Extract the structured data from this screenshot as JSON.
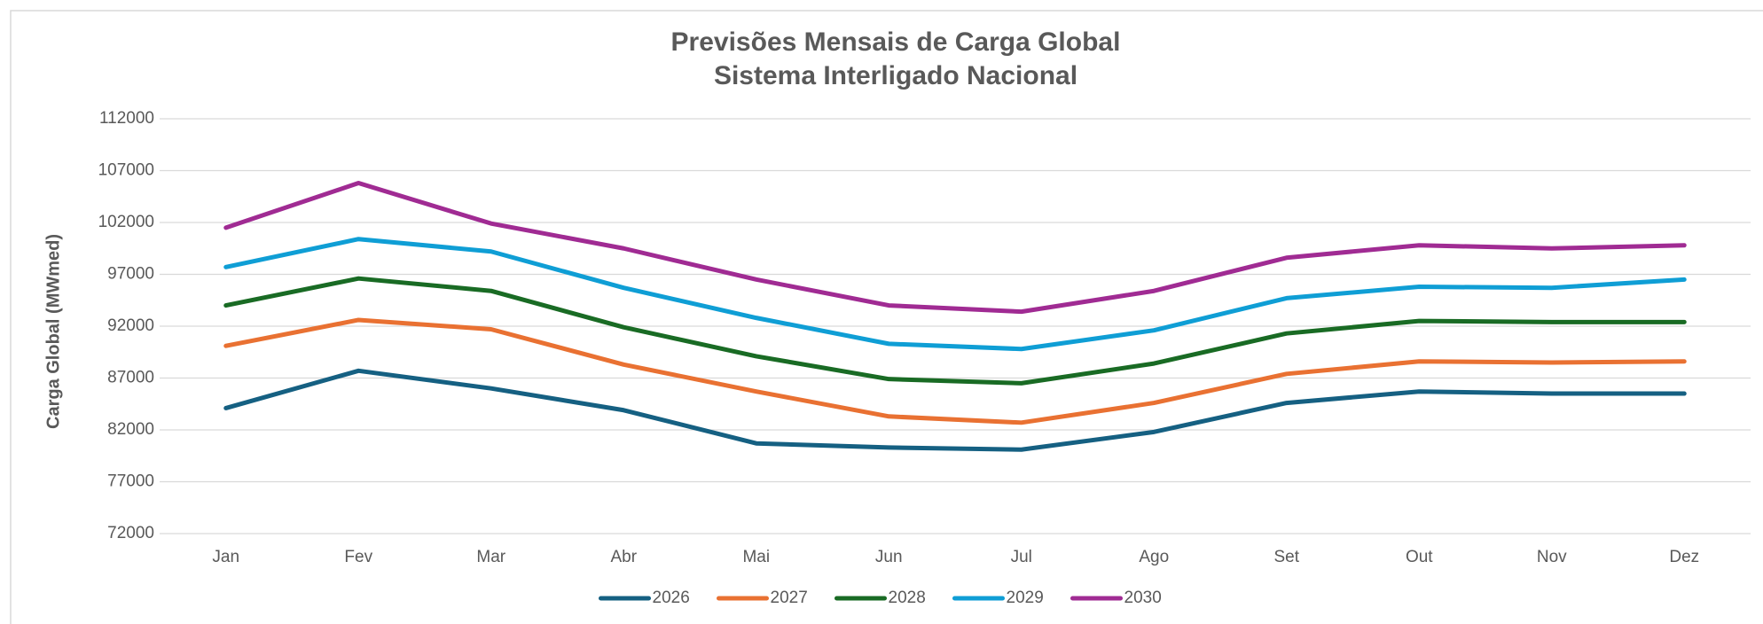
{
  "chart_data": {
    "type": "line",
    "title": "Previsões Mensais de Carga Global",
    "subtitle": "Sistema Interligado Nacional",
    "y_label": "Carga Global (MWmed)",
    "categories": [
      "Jan",
      "Fev",
      "Mar",
      "Abr",
      "Mai",
      "Jun",
      "Jul",
      "Ago",
      "Set",
      "Out",
      "Nov",
      "Dez"
    ],
    "series": [
      {
        "name": "2026",
        "color": "#156082",
        "values": [
          84100,
          87700,
          86000,
          83900,
          80700,
          80300,
          80100,
          81800,
          84600,
          85700,
          85500,
          85500
        ]
      },
      {
        "name": "2027",
        "color": "#e97132",
        "values": [
          90100,
          92600,
          91700,
          88300,
          85700,
          83300,
          82700,
          84600,
          87400,
          88600,
          88500,
          88600
        ]
      },
      {
        "name": "2028",
        "color": "#196b24",
        "values": [
          94000,
          96600,
          95400,
          91900,
          89100,
          86900,
          86500,
          88400,
          91300,
          92500,
          92400,
          92400
        ]
      },
      {
        "name": "2029",
        "color": "#0f9ed5",
        "values": [
          97700,
          100400,
          99200,
          95700,
          92800,
          90300,
          89800,
          91600,
          94700,
          95800,
          95700,
          96500
        ]
      },
      {
        "name": "2030",
        "color": "#a02b93",
        "values": [
          101500,
          105800,
          101900,
          99500,
          96500,
          94000,
          93400,
          95400,
          98600,
          99800,
          99500,
          99800
        ]
      }
    ],
    "ylim": [
      72000,
      112000
    ],
    "yticks": [
      72000,
      77000,
      82000,
      87000,
      92000,
      97000,
      102000,
      107000,
      112000
    ],
    "grid": true,
    "legend": "bottom"
  }
}
